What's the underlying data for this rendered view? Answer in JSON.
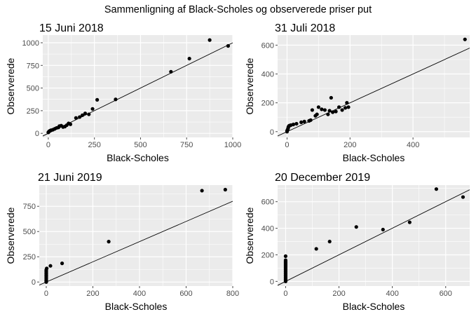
{
  "figure": {
    "title": "Sammenligning af Black-Scholes og observerede priser put",
    "background": "#ffffff",
    "panel_background": "#ebebeb",
    "grid_color": "#ffffff",
    "point_color": "#000000",
    "line_color": "#000000",
    "tick_color": "#4d4d4d"
  },
  "chart_data": [
    {
      "type": "scatter",
      "title": "15 Juni 2018",
      "xlabel": "Black-Scholes",
      "ylabel": "Observerede",
      "xlim": [
        -30,
        1000
      ],
      "ylim": [
        -45,
        1085
      ],
      "xticks": [
        0,
        250,
        500,
        750,
        1000
      ],
      "xtick_labels": [
        "0",
        "250",
        "500",
        "750",
        "1000"
      ],
      "yticks": [
        0,
        250,
        500,
        750,
        1000
      ],
      "ytick_labels": [
        "0",
        "250",
        "500",
        "750",
        "1000"
      ],
      "reference_line": {
        "x1": -30,
        "y1": -30,
        "x2": 1000,
        "y2": 1000
      },
      "points": [
        [
          0,
          10
        ],
        [
          2,
          15
        ],
        [
          4,
          20
        ],
        [
          6,
          25
        ],
        [
          10,
          30
        ],
        [
          15,
          35
        ],
        [
          25,
          40
        ],
        [
          35,
          50
        ],
        [
          45,
          60
        ],
        [
          55,
          65
        ],
        [
          60,
          80
        ],
        [
          70,
          85
        ],
        [
          80,
          70
        ],
        [
          90,
          75
        ],
        [
          100,
          90
        ],
        [
          110,
          110
        ],
        [
          120,
          100
        ],
        [
          150,
          170
        ],
        [
          170,
          180
        ],
        [
          185,
          200
        ],
        [
          200,
          220
        ],
        [
          220,
          210
        ],
        [
          240,
          270
        ],
        [
          265,
          370
        ],
        [
          365,
          375
        ],
        [
          665,
          680
        ],
        [
          765,
          825
        ],
        [
          875,
          1030
        ],
        [
          975,
          965
        ]
      ]
    },
    {
      "type": "scatter",
      "title": "31 Juli 2018",
      "xlabel": "Black-Scholes",
      "ylabel": "Observerede",
      "xlim": [
        -30,
        580
      ],
      "ylim": [
        -40,
        670
      ],
      "xticks": [
        0,
        200,
        400
      ],
      "xtick_labels": [
        "0",
        "200",
        "400"
      ],
      "yticks": [
        0,
        200,
        400,
        600
      ],
      "ytick_labels": [
        "0",
        "200",
        "400",
        "600"
      ],
      "reference_line": {
        "x1": -30,
        "y1": -30,
        "x2": 580,
        "y2": 580
      },
      "points": [
        [
          0,
          0
        ],
        [
          0,
          5
        ],
        [
          1,
          10
        ],
        [
          2,
          15
        ],
        [
          3,
          20
        ],
        [
          4,
          30
        ],
        [
          5,
          35
        ],
        [
          6,
          40
        ],
        [
          8,
          42
        ],
        [
          12,
          45
        ],
        [
          20,
          50
        ],
        [
          30,
          55
        ],
        [
          45,
          65
        ],
        [
          55,
          70
        ],
        [
          70,
          75
        ],
        [
          75,
          80
        ],
        [
          80,
          150
        ],
        [
          90,
          110
        ],
        [
          95,
          120
        ],
        [
          100,
          170
        ],
        [
          110,
          155
        ],
        [
          120,
          150
        ],
        [
          130,
          120
        ],
        [
          135,
          145
        ],
        [
          140,
          235
        ],
        [
          145,
          135
        ],
        [
          155,
          140
        ],
        [
          165,
          170
        ],
        [
          175,
          150
        ],
        [
          185,
          165
        ],
        [
          190,
          200
        ],
        [
          195,
          170
        ],
        [
          565,
          640
        ]
      ]
    },
    {
      "type": "scatter",
      "title": "21 Juni 2019",
      "xlabel": "Black-Scholes",
      "ylabel": "Observerede",
      "xlim": [
        -30,
        800
      ],
      "ylim": [
        -40,
        960
      ],
      "xticks": [
        0,
        200,
        400,
        600,
        800
      ],
      "xtick_labels": [
        "0",
        "200",
        "400",
        "600",
        "800"
      ],
      "yticks": [
        0,
        250,
        500,
        750
      ],
      "ytick_labels": [
        "0",
        "250",
        "500",
        "750"
      ],
      "reference_line": {
        "x1": -30,
        "y1": -30,
        "x2": 800,
        "y2": 800
      },
      "points": [
        [
          0,
          0
        ],
        [
          0,
          5
        ],
        [
          0,
          10
        ],
        [
          0,
          15
        ],
        [
          0,
          20
        ],
        [
          0,
          30
        ],
        [
          0,
          40
        ],
        [
          0,
          50
        ],
        [
          0,
          60
        ],
        [
          0,
          70
        ],
        [
          0,
          80
        ],
        [
          0,
          90
        ],
        [
          0,
          100
        ],
        [
          0,
          110
        ],
        [
          0,
          120
        ],
        [
          2,
          135
        ],
        [
          18,
          160
        ],
        [
          68,
          185
        ],
        [
          268,
          400
        ],
        [
          668,
          905
        ],
        [
          768,
          915
        ]
      ]
    },
    {
      "type": "scatter",
      "title": "20 December 2019",
      "xlabel": "Black-Scholes",
      "ylabel": "Observerede",
      "xlim": [
        -30,
        690
      ],
      "ylim": [
        -35,
        725
      ],
      "xticks": [
        0,
        200,
        400,
        600
      ],
      "xtick_labels": [
        "0",
        "200",
        "400",
        "600"
      ],
      "yticks": [
        0,
        200,
        400,
        600
      ],
      "ytick_labels": [
        "0",
        "200",
        "400",
        "600"
      ],
      "reference_line": {
        "x1": -30,
        "y1": -30,
        "x2": 690,
        "y2": 690
      },
      "points": [
        [
          0,
          0
        ],
        [
          0,
          8
        ],
        [
          0,
          16
        ],
        [
          0,
          24
        ],
        [
          0,
          32
        ],
        [
          0,
          40
        ],
        [
          0,
          48
        ],
        [
          0,
          56
        ],
        [
          0,
          64
        ],
        [
          0,
          72
        ],
        [
          0,
          80
        ],
        [
          0,
          88
        ],
        [
          0,
          96
        ],
        [
          0,
          104
        ],
        [
          0,
          112
        ],
        [
          0,
          120
        ],
        [
          0,
          128
        ],
        [
          0,
          136
        ],
        [
          0,
          144
        ],
        [
          0,
          152
        ],
        [
          0,
          160
        ],
        [
          0,
          190
        ],
        [
          115,
          245
        ],
        [
          165,
          300
        ],
        [
          265,
          410
        ],
        [
          365,
          390
        ],
        [
          465,
          445
        ],
        [
          565,
          695
        ],
        [
          665,
          635
        ]
      ]
    }
  ]
}
